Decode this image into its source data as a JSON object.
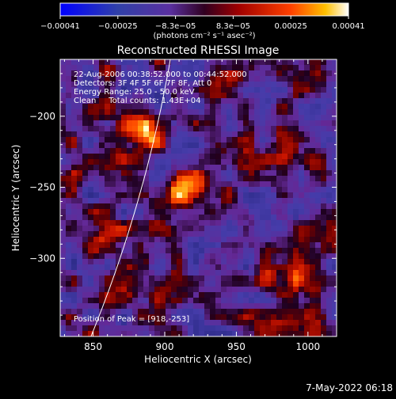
{
  "chart_data": {
    "type": "heatmap",
    "title": "Reconstructed RHESSI Image",
    "xlabel": "Heliocentric X (arcsec)",
    "ylabel": "Heliocentric Y (arcsec)",
    "xlim": [
      827,
      1020
    ],
    "ylim": [
      -355,
      -160
    ],
    "x_ticks": [
      850,
      900,
      950,
      1000
    ],
    "x_tick_labels": [
      "850",
      "900",
      "950",
      "1000"
    ],
    "y_ticks": [
      -200,
      -250,
      -300
    ],
    "y_tick_labels": [
      "−200",
      "−250",
      "−300"
    ],
    "colorbar": {
      "min": -0.00041,
      "max": 0.00041,
      "tick_labels": [
        "−0.00041",
        "−0.00025",
        "−8.3e−05",
        "8.3e−05",
        "0.00025",
        "0.00041"
      ],
      "unit_label": "(photons cm⁻² s⁻¹ asec⁻²)"
    },
    "annotations": [
      "22-Aug-2006 00:38:52.000 to 00:44:52.000",
      "Detectors: 3F 4F 5F 6F 7F 8F, Att 0",
      "Energy Range: 25.0 - 50.0 keV",
      "Clean     Total counts: 1.43E+04"
    ],
    "peak_label": "Position of Peak = [918,-253]",
    "peak": [
      918,
      -253
    ],
    "hotspots": [
      {
        "x": 918,
        "y": -253,
        "amp": 1.0
      },
      {
        "x": 890,
        "y": -210,
        "amp": 0.75
      },
      {
        "x": 985,
        "y": -310,
        "amp": 0.7
      },
      {
        "x": 985,
        "y": -215,
        "amp": 0.6
      },
      {
        "x": 1005,
        "y": -245,
        "amp": 0.5
      },
      {
        "x": 860,
        "y": -290,
        "amp": 0.45
      },
      {
        "x": 945,
        "y": -175,
        "amp": 0.5
      },
      {
        "x": 845,
        "y": -205,
        "amp": 0.4
      }
    ]
  },
  "footer": {
    "date": "7-May-2022 06:18"
  }
}
